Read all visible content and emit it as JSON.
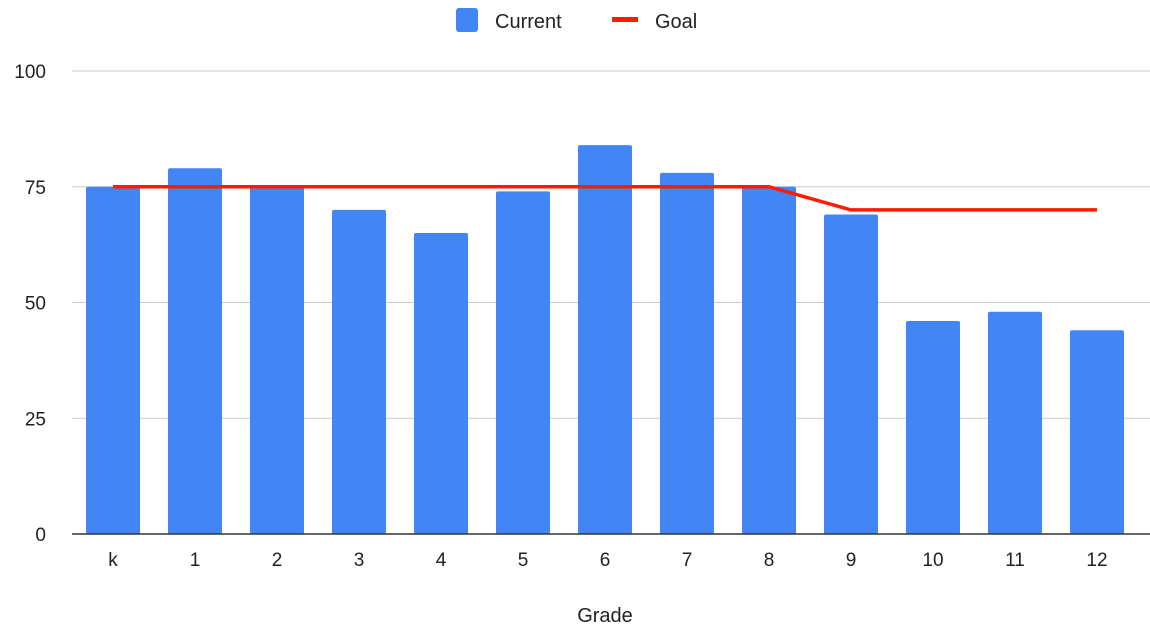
{
  "chart_data": {
    "type": "bar",
    "categories": [
      "k",
      "1",
      "2",
      "3",
      "4",
      "5",
      "6",
      "7",
      "8",
      "9",
      "10",
      "11",
      "12"
    ],
    "series": [
      {
        "name": "Current",
        "type": "bar",
        "color": "#4285f4",
        "values": [
          75,
          79,
          75,
          70,
          65,
          74,
          84,
          78,
          75,
          69,
          46,
          48,
          44
        ]
      },
      {
        "name": "Goal",
        "type": "line",
        "color": "#ff1a00",
        "values": [
          75,
          75,
          75,
          75,
          75,
          75,
          75,
          75,
          75,
          70,
          70,
          70,
          70
        ]
      }
    ],
    "xlabel": "Grade",
    "ylabel": "",
    "ylim": [
      0,
      100
    ],
    "yticks": [
      0,
      25,
      50,
      75,
      100
    ],
    "grid": true,
    "legend": "top-center"
  },
  "legend": {
    "current_label": "Current",
    "goal_label": "Goal"
  },
  "axes": {
    "x_title": "Grade",
    "y_tick_labels": [
      "0",
      "25",
      "50",
      "75",
      "100"
    ]
  }
}
